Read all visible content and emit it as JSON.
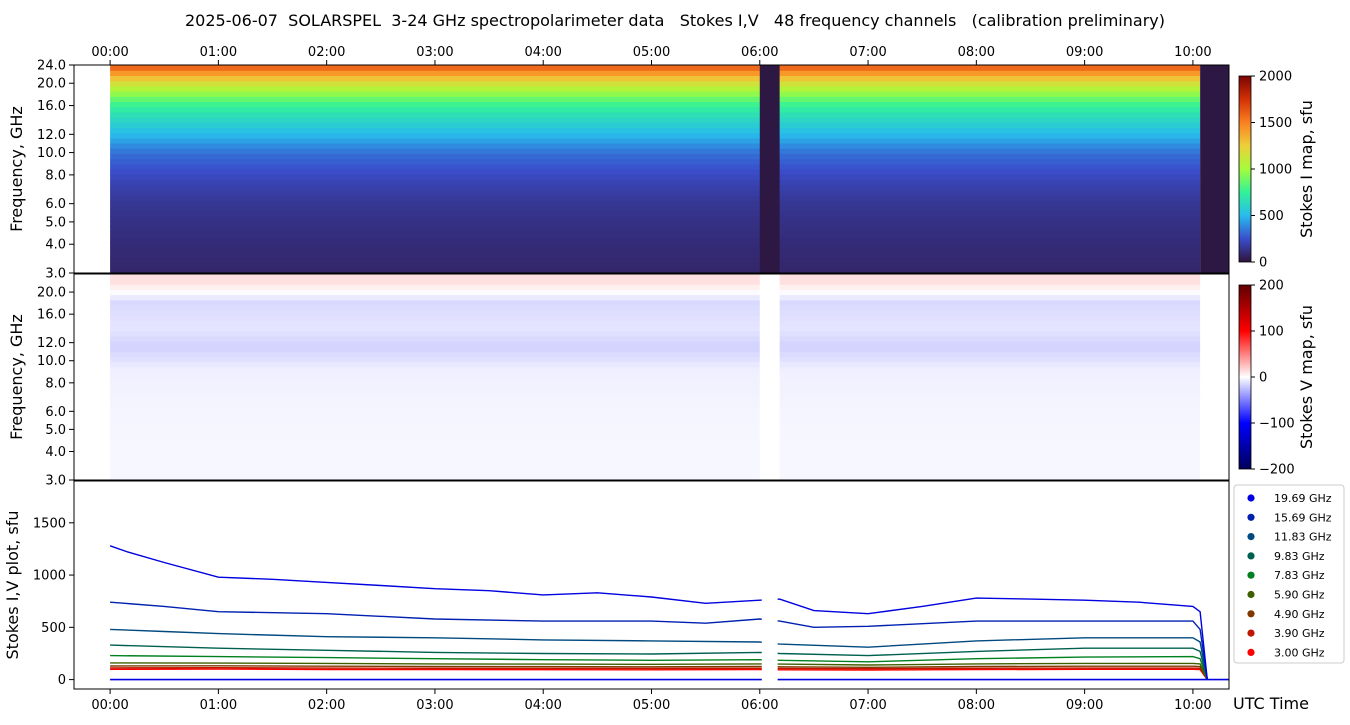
{
  "title": "2025-06-07  SOLARSPEL  3-24 GHz spectropolarimeter data   Stokes I,V   48 frequency channels   (calibration preliminary)",
  "colors": {
    "stokes_i_cmap": [
      "#30123b",
      "#3a4ecc",
      "#28bbec",
      "#32f298",
      "#a4fc3c",
      "#eecf3a",
      "#fb8022",
      "#d23105",
      "#7a0403"
    ],
    "stokes_v_cmap": [
      "#00005a",
      "#0000ff",
      "#ffffff",
      "#ff0000",
      "#600000"
    ],
    "gap_color": "#2c1843"
  },
  "chart_data": [
    {
      "name": "stokes-i-map",
      "type": "heatmap",
      "xlabel": "",
      "ylabel": "Frequency, GHz",
      "colorbar_label": "Stokes I map, sfu",
      "colorbar_ticks": [
        "0",
        "500",
        "1000",
        "1500",
        "2000"
      ],
      "clim": [
        0,
        2000
      ],
      "y_scale": "log",
      "ylim": [
        3.0,
        24.0
      ],
      "yticks": [
        "3.0",
        "4.0",
        "5.0",
        "6.0",
        "8.0",
        "10.0",
        "12.0",
        "16.0",
        "20.0",
        "24.0"
      ],
      "top_axis_ticks": [
        "00:00",
        "01:00",
        "02:00",
        "03:00",
        "04:00",
        "05:00",
        "06:00",
        "07:00",
        "08:00",
        "09:00",
        "10:00"
      ],
      "data_start": "00:00",
      "data_end": "10:04",
      "gap": [
        "06:00",
        "06:11"
      ],
      "approx_values_sfu": [
        {
          "freq_ghz": 24.0,
          "value": 1650
        },
        {
          "freq_ghz": 20.0,
          "value": 1150
        },
        {
          "freq_ghz": 16.0,
          "value": 750
        },
        {
          "freq_ghz": 12.0,
          "value": 500
        },
        {
          "freq_ghz": 10.0,
          "value": 330
        },
        {
          "freq_ghz": 8.0,
          "value": 230
        },
        {
          "freq_ghz": 6.0,
          "value": 150
        },
        {
          "freq_ghz": 3.0,
          "value": 80
        }
      ]
    },
    {
      "name": "stokes-v-map",
      "type": "heatmap",
      "xlabel": "",
      "ylabel": "Frequency, GHz",
      "colorbar_label": "Stokes V map, sfu",
      "colorbar_ticks": [
        "−200",
        "−100",
        "0",
        "100",
        "200"
      ],
      "clim": [
        -200,
        200
      ],
      "y_scale": "log",
      "ylim": [
        3.0,
        24.0
      ],
      "yticks": [
        "3.0",
        "4.0",
        "5.0",
        "6.0",
        "8.0",
        "10.0",
        "12.0",
        "16.0",
        "20.0"
      ],
      "data_start": "00:00",
      "data_end": "10:04",
      "gap": [
        "06:00",
        "06:11"
      ],
      "approx_values_sfu": [
        {
          "freq_ghz": 22.0,
          "value": 12
        },
        {
          "freq_ghz": 18.0,
          "value": -15
        },
        {
          "freq_ghz": 14.0,
          "value": -10
        },
        {
          "freq_ghz": 11.5,
          "value": -18
        },
        {
          "freq_ghz": 9.0,
          "value": -6
        },
        {
          "freq_ghz": 6.0,
          "value": -4
        },
        {
          "freq_ghz": 4.0,
          "value": -3
        }
      ]
    },
    {
      "name": "stokes-iv-plot",
      "type": "line",
      "xlabel": "UTC Time",
      "ylabel": "Stokes I,V plot, sfu",
      "ylim": [
        -90,
        1900
      ],
      "yticks": [
        "0",
        "500",
        "1000",
        "1500"
      ],
      "xticks": [
        "00:00",
        "01:00",
        "02:00",
        "03:00",
        "04:00",
        "05:00",
        "06:00",
        "07:00",
        "08:00",
        "09:00",
        "10:00"
      ],
      "x_range": [
        "23:40",
        "10:20"
      ],
      "gap": [
        "06:00",
        "06:11"
      ],
      "series": [
        {
          "name": "19.69 GHz",
          "color": "#0000e0",
          "x": [
            "00:00",
            "00:10",
            "00:30",
            "01:00",
            "01:30",
            "02:00",
            "02:30",
            "03:00",
            "03:30",
            "04:00",
            "04:30",
            "05:00",
            "05:30",
            "06:00",
            "06:11",
            "06:30",
            "07:00",
            "07:30",
            "08:00",
            "08:30",
            "09:00",
            "09:30",
            "10:00",
            "10:04",
            "10:08"
          ],
          "values": [
            1280,
            1220,
            1120,
            980,
            960,
            930,
            900,
            870,
            850,
            810,
            830,
            790,
            730,
            760,
            770,
            660,
            630,
            700,
            780,
            770,
            760,
            740,
            700,
            650,
            0
          ]
        },
        {
          "name": "15.69 GHz",
          "color": "#0020b0",
          "x": [
            "00:00",
            "00:30",
            "01:00",
            "02:00",
            "03:00",
            "04:00",
            "05:00",
            "05:30",
            "06:00",
            "06:11",
            "06:30",
            "07:00",
            "08:00",
            "09:00",
            "10:00",
            "10:04",
            "10:08"
          ],
          "values": [
            740,
            700,
            650,
            630,
            580,
            560,
            560,
            540,
            580,
            560,
            500,
            510,
            560,
            560,
            560,
            480,
            0
          ]
        },
        {
          "name": "11.83 GHz",
          "color": "#004a80",
          "x": [
            "00:00",
            "00:30",
            "01:00",
            "02:00",
            "03:00",
            "04:00",
            "05:00",
            "06:00",
            "06:11",
            "07:00",
            "08:00",
            "09:00",
            "10:00",
            "10:04",
            "10:08"
          ],
          "values": [
            480,
            460,
            440,
            410,
            400,
            380,
            370,
            360,
            340,
            310,
            370,
            400,
            400,
            360,
            0
          ]
        },
        {
          "name": "9.83 GHz",
          "color": "#006050",
          "x": [
            "00:00",
            "01:00",
            "02:00",
            "03:00",
            "04:00",
            "05:00",
            "06:00",
            "06:11",
            "07:00",
            "08:00",
            "09:00",
            "10:00",
            "10:04",
            "10:08"
          ],
          "values": [
            330,
            300,
            280,
            260,
            250,
            245,
            260,
            250,
            230,
            270,
            300,
            300,
            270,
            0
          ]
        },
        {
          "name": "7.83 GHz",
          "color": "#008020",
          "x": [
            "00:00",
            "01:00",
            "02:00",
            "03:00",
            "04:00",
            "05:00",
            "06:00",
            "06:11",
            "07:00",
            "08:00",
            "09:00",
            "10:00",
            "10:04",
            "10:08"
          ],
          "values": [
            230,
            220,
            210,
            200,
            190,
            185,
            190,
            185,
            170,
            200,
            215,
            220,
            200,
            0
          ]
        },
        {
          "name": "5.90 GHz",
          "color": "#406000",
          "x": [
            "00:00",
            "01:00",
            "02:00",
            "03:00",
            "04:00",
            "05:00",
            "06:00",
            "06:11",
            "07:00",
            "08:00",
            "09:00",
            "10:00",
            "10:04",
            "10:08"
          ],
          "values": [
            160,
            158,
            155,
            150,
            148,
            146,
            150,
            148,
            140,
            150,
            155,
            155,
            150,
            0
          ]
        },
        {
          "name": "4.90 GHz",
          "color": "#803800",
          "x": [
            "00:00",
            "01:00",
            "02:00",
            "03:00",
            "04:00",
            "05:00",
            "06:00",
            "06:11",
            "07:00",
            "08:00",
            "09:00",
            "10:00",
            "10:04",
            "10:08"
          ],
          "values": [
            130,
            132,
            128,
            125,
            124,
            122,
            125,
            122,
            118,
            125,
            128,
            128,
            125,
            0
          ]
        },
        {
          "name": "3.90 GHz",
          "color": "#c01800",
          "x": [
            "00:00",
            "01:00",
            "02:00",
            "03:00",
            "04:00",
            "05:00",
            "06:00",
            "06:11",
            "07:00",
            "08:00",
            "09:00",
            "10:00",
            "10:04",
            "10:08"
          ],
          "values": [
            112,
            114,
            110,
            108,
            108,
            106,
            108,
            106,
            104,
            108,
            110,
            110,
            108,
            0
          ]
        },
        {
          "name": "3.00 GHz",
          "color": "#ff0000",
          "x": [
            "00:00",
            "01:00",
            "02:00",
            "03:00",
            "04:00",
            "05:00",
            "06:00",
            "06:11",
            "07:00",
            "08:00",
            "09:00",
            "10:00",
            "10:04",
            "10:08"
          ],
          "values": [
            98,
            100,
            97,
            96,
            95,
            94,
            96,
            94,
            92,
            96,
            98,
            98,
            96,
            0
          ]
        }
      ],
      "stokes_v_series_values_near": 0,
      "legend_placement": "right"
    }
  ]
}
